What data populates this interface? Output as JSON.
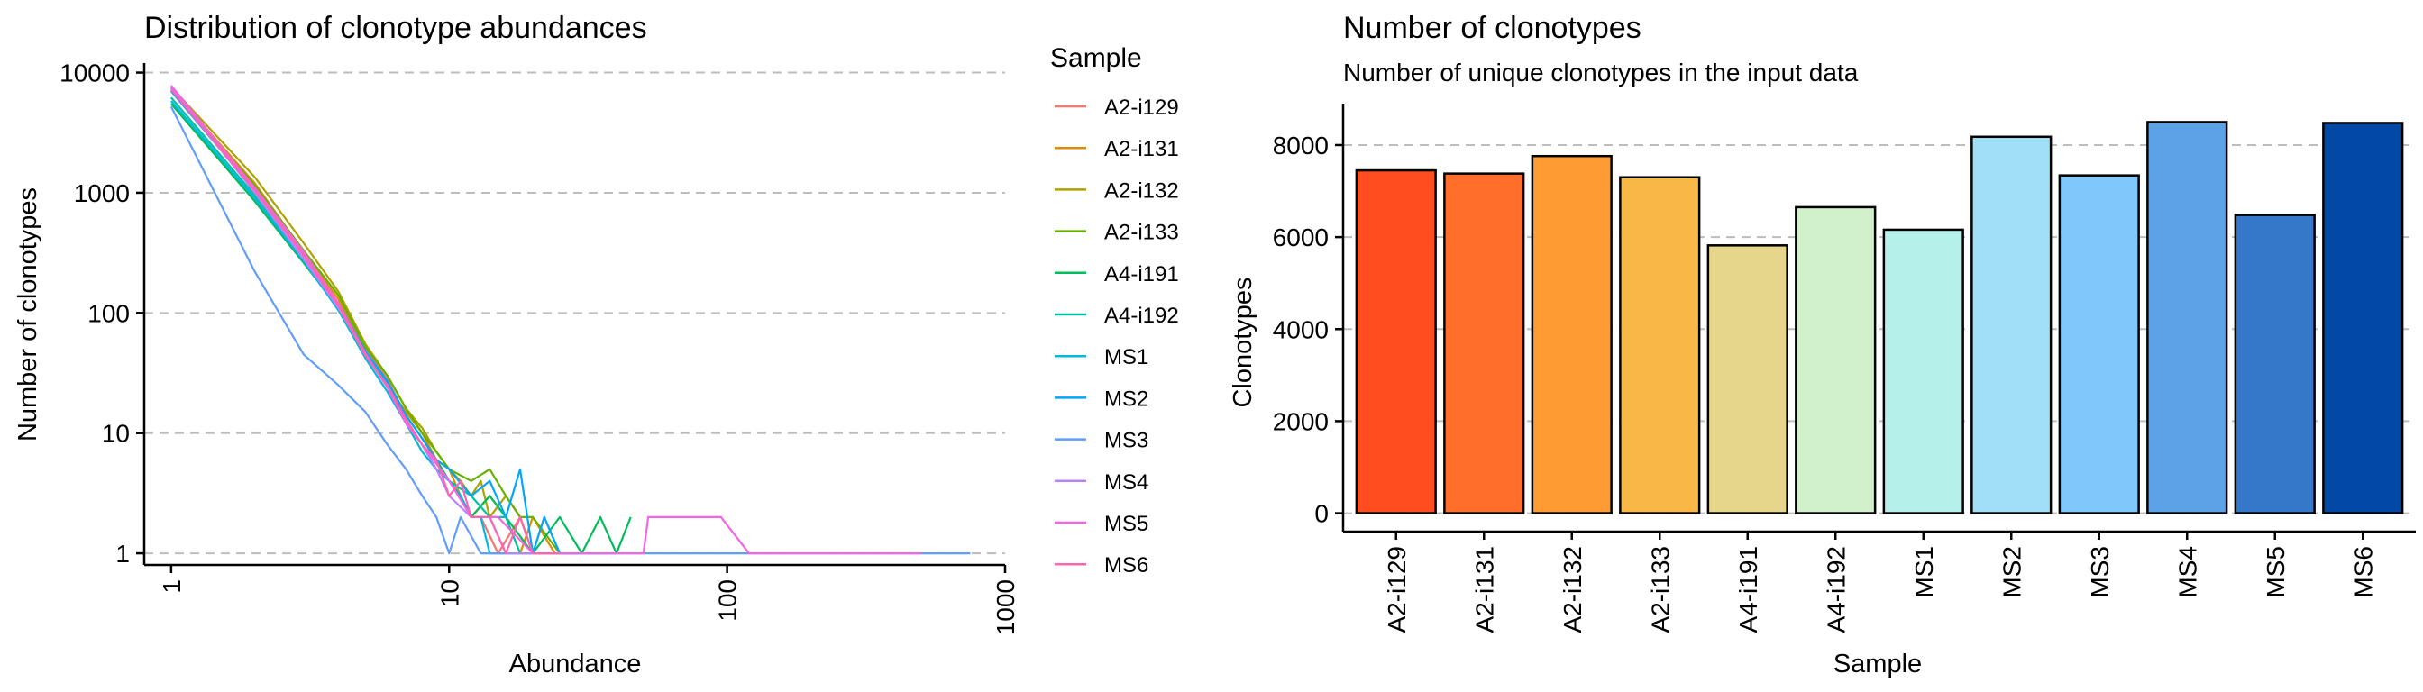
{
  "chart_data": [
    {
      "type": "line",
      "title": "Distribution of clonotype abundances",
      "xlabel": "Abundance",
      "ylabel": "Number of clonotypes",
      "xscale": "log10",
      "yscale": "log10",
      "xlim": [
        0.8,
        1000
      ],
      "ylim": [
        0.8,
        12000
      ],
      "xticks": [
        1,
        10,
        100,
        1000
      ],
      "xtick_labels": [
        "1",
        "10",
        "100",
        "1000"
      ],
      "yticks": [
        1,
        10,
        100,
        1000,
        10000
      ],
      "ytick_labels": [
        "1",
        "10",
        "100",
        "1000",
        "10000"
      ],
      "grid": "horizontal dashed",
      "legend": {
        "title": "Sample",
        "position": "right"
      },
      "series": [
        {
          "name": "A2-i129",
          "color": "#F8766D",
          "x": [
            1,
            2,
            3,
            4,
            5,
            6,
            7,
            8,
            9,
            10,
            11,
            12,
            13,
            15,
            18,
            20,
            25
          ],
          "y": [
            7400,
            1100,
            300,
            120,
            50,
            28,
            14,
            9,
            6,
            4,
            3,
            2,
            2,
            1,
            2,
            1,
            1
          ]
        },
        {
          "name": "A2-i131",
          "color": "#DB8E00",
          "x": [
            1,
            2,
            3,
            4,
            5,
            6,
            7,
            8,
            9,
            10,
            11,
            12,
            14,
            16,
            18,
            20,
            24
          ],
          "y": [
            7300,
            1200,
            320,
            130,
            48,
            25,
            15,
            10,
            6,
            5,
            3,
            2,
            3,
            2,
            1,
            2,
            1
          ]
        },
        {
          "name": "A2-i132",
          "color": "#AEA200",
          "x": [
            1,
            2,
            3,
            4,
            5,
            6,
            7,
            8,
            9,
            10,
            11,
            12,
            13,
            14,
            16,
            18,
            20,
            22,
            25,
            28
          ],
          "y": [
            7600,
            1350,
            380,
            150,
            55,
            30,
            16,
            11,
            7,
            5,
            4,
            3,
            4,
            2,
            3,
            2,
            1,
            2,
            1,
            1
          ]
        },
        {
          "name": "A2-i133",
          "color": "#64B200",
          "x": [
            1,
            2,
            3,
            4,
            5,
            6,
            7,
            8,
            9,
            10,
            12,
            14,
            16,
            18,
            20,
            25,
            30
          ],
          "y": [
            7000,
            1150,
            330,
            140,
            52,
            30,
            16,
            10,
            7,
            5,
            4,
            5,
            3,
            2,
            2,
            1,
            1
          ]
        },
        {
          "name": "A4-i191",
          "color": "#00BD5C",
          "x": [
            1,
            2,
            3,
            4,
            5,
            6,
            7,
            8,
            9,
            10,
            11,
            12,
            14,
            16,
            20,
            25,
            30,
            35,
            40,
            45
          ],
          "y": [
            5500,
            850,
            260,
            110,
            45,
            25,
            14,
            9,
            6,
            4,
            3,
            2,
            3,
            2,
            1,
            2,
            1,
            2,
            1,
            2
          ]
        },
        {
          "name": "A4-i192",
          "color": "#00C1A7",
          "x": [
            1,
            2,
            3,
            4,
            5,
            6,
            7,
            8,
            9,
            10,
            12,
            14,
            16,
            18,
            22,
            28
          ],
          "y": [
            6200,
            950,
            280,
            115,
            46,
            26,
            13,
            8,
            5,
            4,
            3,
            2,
            2,
            1,
            1,
            1
          ]
        },
        {
          "name": "MS1",
          "color": "#00BADE",
          "x": [
            1,
            2,
            3,
            4,
            5,
            6,
            7,
            8,
            9,
            10,
            11,
            12,
            13,
            14,
            16,
            18
          ],
          "y": [
            5800,
            900,
            270,
            105,
            42,
            22,
            12,
            7,
            5,
            4,
            3,
            2,
            2,
            1,
            1,
            1
          ]
        },
        {
          "name": "MS2",
          "color": "#00A6FF",
          "x": [
            1,
            2,
            3,
            4,
            5,
            6,
            7,
            8,
            9,
            10,
            12,
            14,
            16,
            18,
            20,
            22,
            25,
            30,
            40
          ],
          "y": [
            7000,
            1050,
            300,
            120,
            48,
            27,
            14,
            9,
            6,
            5,
            3,
            4,
            2,
            5,
            1,
            2,
            1,
            1,
            1
          ]
        },
        {
          "name": "MS3",
          "color": "#619CFF",
          "x": [
            1,
            2,
            3,
            4,
            5,
            6,
            7,
            8,
            9,
            10,
            11,
            13,
            15,
            20,
            30,
            50,
            100,
            300,
            750
          ],
          "y": [
            5200,
            220,
            45,
            25,
            15,
            8,
            5,
            3,
            2,
            1,
            2,
            1,
            1,
            1,
            1,
            1,
            1,
            1,
            1
          ]
        },
        {
          "name": "MS4",
          "color": "#B983FF",
          "x": [
            1,
            2,
            3,
            4,
            5,
            6,
            7,
            8,
            9,
            10,
            12,
            14,
            16,
            20
          ],
          "y": [
            7500,
            1000,
            280,
            110,
            45,
            24,
            12,
            8,
            5,
            3,
            2,
            2,
            1,
            1
          ]
        },
        {
          "name": "MS5",
          "color": "#F564E3",
          "x": [
            1,
            2,
            3,
            4,
            5,
            6,
            7,
            8,
            10,
            12,
            15,
            20,
            30,
            50,
            52,
            95,
            120,
            500
          ],
          "y": [
            7800,
            1100,
            320,
            120,
            46,
            24,
            12,
            8,
            4,
            2,
            2,
            1,
            1,
            1,
            2,
            2,
            1,
            1
          ]
        },
        {
          "name": "MS6",
          "color": "#FF64B0",
          "x": [
            1,
            2,
            3,
            4,
            5,
            6,
            7,
            8,
            9,
            10,
            11,
            12,
            14,
            16,
            18,
            20,
            25
          ],
          "y": [
            7200,
            1050,
            300,
            115,
            44,
            25,
            13,
            8,
            6,
            3,
            4,
            2,
            2,
            1,
            2,
            1,
            1
          ]
        }
      ]
    },
    {
      "type": "bar",
      "title": "Number of clonotypes",
      "subtitle": "Number of unique clonotypes in the input data",
      "xlabel": "Sample",
      "ylabel": "Clonotypes",
      "ylim": [
        -400,
        8900
      ],
      "yticks": [
        0,
        2000,
        4000,
        6000,
        8000
      ],
      "ytick_labels": [
        "0",
        "2000",
        "4000",
        "6000",
        "8000"
      ],
      "grid": "horizontal dashed",
      "categories": [
        "A2-i129",
        "A2-i131",
        "A2-i132",
        "A2-i133",
        "A4-i191",
        "A4-i192",
        "MS1",
        "MS2",
        "MS3",
        "MS4",
        "MS5",
        "MS6"
      ],
      "values": [
        7450,
        7380,
        7760,
        7300,
        5820,
        6650,
        6160,
        8180,
        7340,
        8500,
        6480,
        8480
      ],
      "colors": [
        "#FF4D20",
        "#FF6F2B",
        "#FF9B33",
        "#F9B846",
        "#E6D68C",
        "#D1F1CB",
        "#B5F1EA",
        "#A0DFF5",
        "#7FC8FB",
        "#5BA3E6",
        "#3478C9",
        "#0248A5"
      ]
    }
  ]
}
